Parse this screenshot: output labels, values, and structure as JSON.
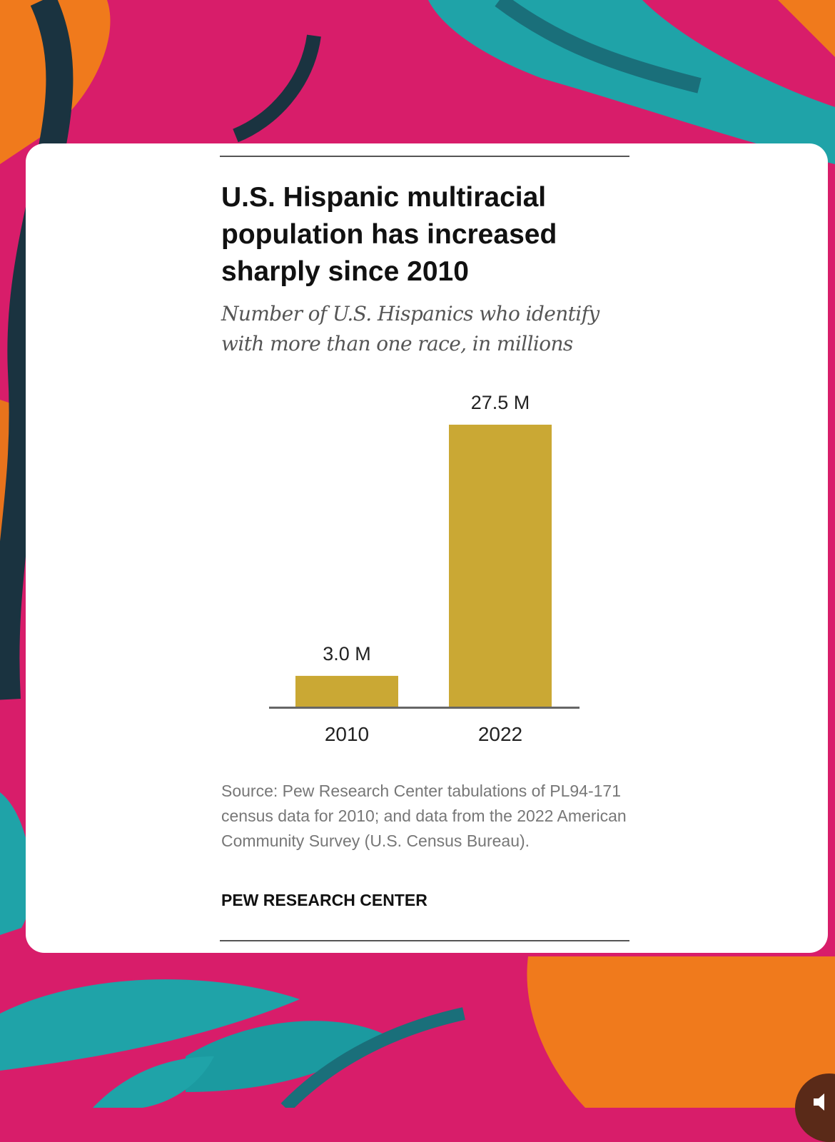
{
  "card": {
    "title": "U.S. Hispanic multiracial population has increased sharply since 2010",
    "subtitle": "Number of U.S. Hispanics who identify with more than one race, in millions",
    "source": "Source: Pew Research Center tabulations of PL94-171 census data for 2010; and data from the 2022 American Community Survey (U.S. Census Bureau).",
    "brand": "PEW RESEARCH CENTER"
  },
  "colors": {
    "bar": "#caa834",
    "axis": "#666666",
    "background_pink": "#d81d6a",
    "background_teal": "#1fa3a8",
    "background_orange": "#f07a1c"
  },
  "icons": {
    "sound": "speaker-icon"
  },
  "chart_data": {
    "type": "bar",
    "categories": [
      "2010",
      "2022"
    ],
    "values": [
      3.0,
      27.5
    ],
    "data_labels": [
      "3.0 M",
      "27.5 M"
    ],
    "title": "U.S. Hispanic multiracial population has increased sharply since 2010",
    "subtitle": "Number of U.S. Hispanics who identify with more than one race, in millions",
    "xlabel": "",
    "ylabel": "",
    "ylim": [
      0,
      27.5
    ],
    "grid": false,
    "legend": "none"
  }
}
